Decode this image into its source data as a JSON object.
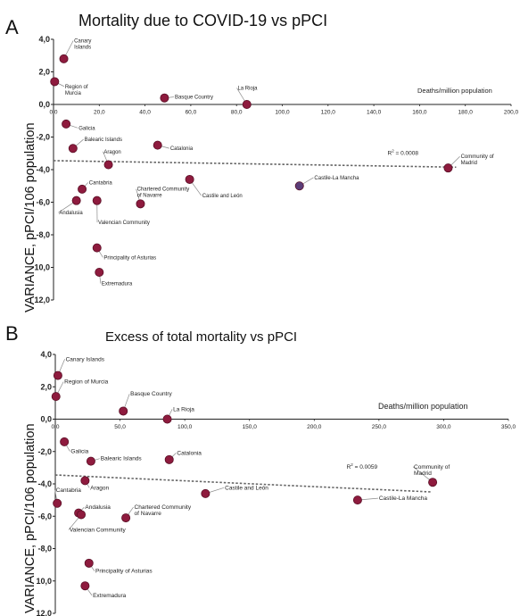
{
  "figure": {
    "panels": [
      {
        "letter": "A",
        "title": "Mortality due to COVID-19 vs pPCI"
      },
      {
        "letter": "B",
        "title": "Excess of total mortality vs pPCI"
      }
    ]
  },
  "chart_data": [
    {
      "type": "scatter",
      "panel": "A",
      "title": "Mortality due to COVID-19 vs pPCI",
      "xlabel": "Deaths/million population",
      "ylabel": "VARIANCE, pPCI/106 population",
      "xlim": [
        0,
        200
      ],
      "ylim": [
        -12,
        4
      ],
      "x_ticks": [
        {
          "v": 0,
          "label": "0,0"
        },
        {
          "v": 20,
          "label": "20,0"
        },
        {
          "v": 40,
          "label": "40,0"
        },
        {
          "v": 60,
          "label": "60,0"
        },
        {
          "v": 80,
          "label": "80,0"
        },
        {
          "v": 100,
          "label": "100,0"
        },
        {
          "v": 120,
          "label": "120,0"
        },
        {
          "v": 140,
          "label": "140,0"
        },
        {
          "v": 160,
          "label": "160,0"
        },
        {
          "v": 180,
          "label": "180,0"
        },
        {
          "v": 200,
          "label": "200,0"
        }
      ],
      "y_ticks": [
        {
          "v": 4,
          "label": "4,0"
        },
        {
          "v": 2,
          "label": "2,0"
        },
        {
          "v": 0,
          "label": "0,0"
        },
        {
          "v": -2,
          "label": "-2,0"
        },
        {
          "v": -4,
          "label": "-4,0"
        },
        {
          "v": -6,
          "label": "-6,0"
        },
        {
          "v": -8,
          "label": "-8,0"
        },
        {
          "v": -10,
          "label": "10,0"
        },
        {
          "v": -12,
          "label": "12,0"
        }
      ],
      "points": [
        {
          "name": "Canary Islands",
          "x": 4.5,
          "y": 2.8,
          "label_lines": [
            "Canary",
            "Islands"
          ],
          "lx": 9,
          "ly": 3.8
        },
        {
          "name": "Region of Murcia",
          "x": 0.5,
          "y": 1.4,
          "label_lines": [
            "Region of",
            "Murcia"
          ],
          "lx": 5,
          "ly": 1.0
        },
        {
          "name": "Basque Country",
          "x": 48.5,
          "y": 0.4,
          "label_lines": [
            "Basque Country"
          ],
          "lx": 53,
          "ly": 0.35
        },
        {
          "name": "La Rioja",
          "x": 84.5,
          "y": 0.0,
          "label_lines": [
            "La Rioja"
          ],
          "lx": 80.5,
          "ly": 0.9
        },
        {
          "name": "Galicia",
          "x": 5.5,
          "y": -1.2,
          "label_lines": [
            "Galicia"
          ],
          "lx": 11,
          "ly": -1.55
        },
        {
          "name": "Balearic Islands",
          "x": 8.5,
          "y": -2.7,
          "label_lines": [
            "Balearic Islands"
          ],
          "lx": 13.5,
          "ly": -2.25
        },
        {
          "name": "Catalonia",
          "x": 45.5,
          "y": -2.5,
          "label_lines": [
            "Catalonia"
          ],
          "lx": 51,
          "ly": -2.8
        },
        {
          "name": "Aragon",
          "x": 24.0,
          "y": -3.7,
          "label_lines": [
            "Aragon"
          ],
          "lx": 22,
          "ly": -3.0
        },
        {
          "name": "Community of Madrid",
          "x": 172.5,
          "y": -3.9,
          "label_lines": [
            "Community of",
            "Madrid"
          ],
          "lx": 178,
          "ly": -3.3
        },
        {
          "name": "Castile-La Mancha",
          "x": 107.5,
          "y": -5.0,
          "label_lines": [
            "Castile-La Mancha"
          ],
          "lx": 114,
          "ly": -4.6
        },
        {
          "name": "Castile and León",
          "x": 59.5,
          "y": -4.6,
          "label_lines": [
            "Castile and León"
          ],
          "lx": 65,
          "ly": -5.7
        },
        {
          "name": "Cantabria",
          "x": 12.5,
          "y": -5.2,
          "label_lines": [
            "Cantabria"
          ],
          "lx": 15.5,
          "ly": -4.9
        },
        {
          "name": "Andalusia",
          "x": 10.0,
          "y": -5.9,
          "label_lines": [
            "Andalusia"
          ],
          "lx": 2.5,
          "ly": -6.75
        },
        {
          "name": "Valencian Community",
          "x": 19.0,
          "y": -5.9,
          "label_lines": [
            "Valencian Community"
          ],
          "lx": 19.5,
          "ly": -7.35
        },
        {
          "name": "Chartered Community of Navarre",
          "x": 38.0,
          "y": -6.1,
          "label_lines": [
            "Chartered Community",
            "of Navarre"
          ],
          "lx": 36.5,
          "ly": -5.3
        },
        {
          "name": "Principality of Asturias",
          "x": 19.0,
          "y": -8.8,
          "label_lines": [
            "Principality of Asturias"
          ],
          "lx": 22,
          "ly": -9.5
        },
        {
          "name": "Extremadura",
          "x": 20.0,
          "y": -10.3,
          "label_lines": [
            "Extremadura"
          ],
          "lx": 21,
          "ly": -11.1
        }
      ],
      "trendline": {
        "x1": 0,
        "y1": -3.45,
        "x2": 176,
        "y2": -3.85
      },
      "r2": {
        "text": "R",
        "sup": "2",
        "value": " = 0.0008",
        "x": 146,
        "y": -3.1
      }
    },
    {
      "type": "scatter",
      "panel": "B",
      "title": "Excess of total mortality vs pPCI",
      "xlabel": "Deaths/million population",
      "ylabel": "VARIANCE, pPCI/106 population",
      "xlim": [
        0,
        350
      ],
      "ylim": [
        -12,
        4
      ],
      "x_ticks": [
        {
          "v": 0,
          "label": "0,0"
        },
        {
          "v": 50,
          "label": "50,0"
        },
        {
          "v": 100,
          "label": "100,0"
        },
        {
          "v": 150,
          "label": "150,0"
        },
        {
          "v": 200,
          "label": "200,0"
        },
        {
          "v": 250,
          "label": "250,0"
        },
        {
          "v": 300,
          "label": "300,0"
        },
        {
          "v": 350,
          "label": "350,0"
        }
      ],
      "y_ticks": [
        {
          "v": 4,
          "label": "4,0"
        },
        {
          "v": 2,
          "label": "2,0"
        },
        {
          "v": 0,
          "label": "0,0"
        },
        {
          "v": -2,
          "label": "-2,0"
        },
        {
          "v": -4,
          "label": "-4,0"
        },
        {
          "v": -6,
          "label": "-6,0"
        },
        {
          "v": -8,
          "label": "-8,0"
        },
        {
          "v": -10,
          "label": "10,0"
        },
        {
          "v": -12,
          "label": "12,0"
        }
      ],
      "points": [
        {
          "name": "Canary Islands",
          "x": 2.0,
          "y": 2.7,
          "label_lines": [
            "Canary Islands"
          ],
          "lx": 8,
          "ly": 3.6
        },
        {
          "name": "Region of Murcia",
          "x": 0.5,
          "y": 1.4,
          "label_lines": [
            "Region of Murcia"
          ],
          "lx": 7,
          "ly": 2.2
        },
        {
          "name": "Basque Country",
          "x": 52.5,
          "y": 0.5,
          "label_lines": [
            "Basque Country"
          ],
          "lx": 58,
          "ly": 1.45
        },
        {
          "name": "La Rioja",
          "x": 86.5,
          "y": 0.0,
          "label_lines": [
            "La Rioja"
          ],
          "lx": 91,
          "ly": 0.5
        },
        {
          "name": "Galicia",
          "x": 7.0,
          "y": -1.4,
          "label_lines": [
            "Galicia"
          ],
          "lx": 12,
          "ly": -2.1
        },
        {
          "name": "Balearic Islands",
          "x": 27.5,
          "y": -2.6,
          "label_lines": [
            "Balearic Islands"
          ],
          "lx": 35,
          "ly": -2.55
        },
        {
          "name": "Catalonia",
          "x": 88.0,
          "y": -2.5,
          "label_lines": [
            "Catalonia"
          ],
          "lx": 94,
          "ly": -2.2
        },
        {
          "name": "Aragon",
          "x": 23.0,
          "y": -3.8,
          "label_lines": [
            "Aragon"
          ],
          "lx": 27,
          "ly": -4.35
        },
        {
          "name": "Community of Madrid",
          "x": 291.5,
          "y": -3.9,
          "label_lines": [
            "Community of",
            "Madrid"
          ],
          "lx": 277,
          "ly": -3.05
        },
        {
          "name": "Castile-La Mancha",
          "x": 233.5,
          "y": -5.0,
          "label_lines": [
            "Castile-La Mancha"
          ],
          "lx": 250,
          "ly": -5.0
        },
        {
          "name": "Castile and León",
          "x": 116.0,
          "y": -4.6,
          "label_lines": [
            "Castile and León"
          ],
          "lx": 131,
          "ly": -4.35
        },
        {
          "name": "Cantabria",
          "x": 1.5,
          "y": -5.2,
          "label_lines": [
            "Cantabria"
          ],
          "lx": 0.5,
          "ly": -4.5
        },
        {
          "name": "Andalusia",
          "x": 18.0,
          "y": -5.8,
          "label_lines": [
            "Andalusia"
          ],
          "lx": 23,
          "ly": -5.55
        },
        {
          "name": "Valencian Community",
          "x": 20.0,
          "y": -5.9,
          "label_lines": [
            "Valencian Community"
          ],
          "lx": 11,
          "ly": -6.95
        },
        {
          "name": "Chartered Community of Navarre",
          "x": 54.5,
          "y": -6.1,
          "label_lines": [
            "Chartered Community",
            "of Navarre"
          ],
          "lx": 61,
          "ly": -5.55
        },
        {
          "name": "Principality of Asturias",
          "x": 26.0,
          "y": -8.9,
          "label_lines": [
            "Principality of Asturias"
          ],
          "lx": 31,
          "ly": -9.5
        },
        {
          "name": "Extremadura",
          "x": 23.0,
          "y": -10.3,
          "label_lines": [
            "Extremadura"
          ],
          "lx": 29,
          "ly": -11.0
        }
      ],
      "trendline": {
        "x1": 0,
        "y1": -3.45,
        "x2": 291,
        "y2": -4.5
      },
      "r2": {
        "text": "R",
        "sup": "2",
        "value": " = 0.0059",
        "x": 225,
        "y": -3.05
      }
    }
  ],
  "colors": {
    "marker_fill": "#8e1b3e",
    "marker_stroke": "#5a0f26",
    "marker_fill_alt": "#5b3d78",
    "axis": "#222222",
    "trendline": "#666666",
    "leader": "#8a8a8a"
  }
}
